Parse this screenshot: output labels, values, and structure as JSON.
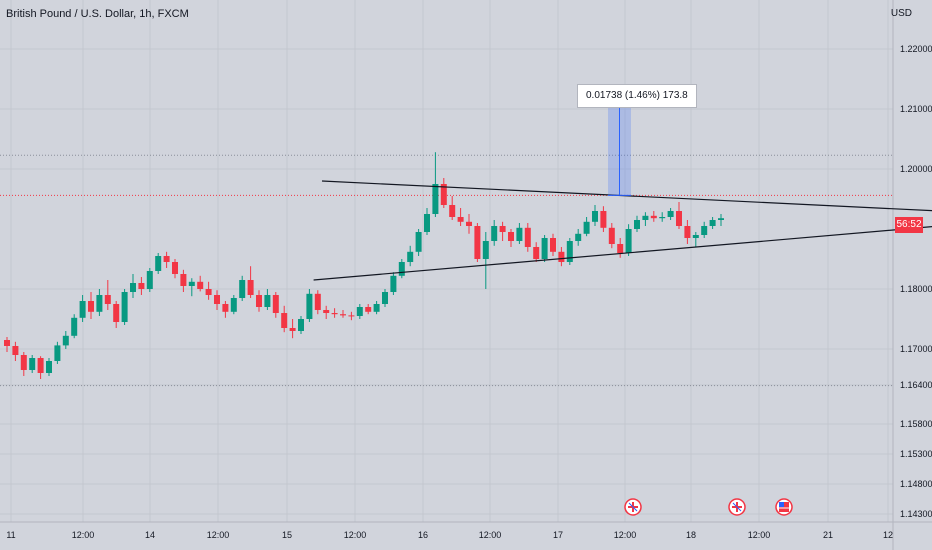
{
  "header": {
    "title": "British Pound / U.S. Dollar, 1h, FXCM",
    "currency": "USD"
  },
  "price_tag": {
    "label": "56:52",
    "color": "#f23645"
  },
  "measure": {
    "label": "0.01738 (1.46%) 173.8",
    "accent": "#2962ff"
  },
  "colors": {
    "up": "#089981",
    "down": "#f23645",
    "background": "#d1d4dc",
    "grid": "#c4c7cf",
    "trendline": "#131722"
  },
  "event_icons": [
    {
      "icon": "uk-flag-icon",
      "x": "12:00 (18)"
    },
    {
      "icon": "uk-flag-icon",
      "x": "19 (day)"
    },
    {
      "icon": "us-flag-icon",
      "x": "19 (day)"
    }
  ],
  "chart_data": {
    "type": "candlestick",
    "title": "British Pound / U.S. Dollar, 1h, FXCM",
    "ylabel": "USD",
    "ylim": [
      1.143,
      1.225
    ],
    "y_ticks": [
      1.22,
      1.21,
      1.2,
      1.18,
      1.17,
      1.164,
      1.158,
      1.153,
      1.148,
      1.143
    ],
    "y_tick_labels": [
      "1.22000",
      "1.21000",
      "1.20000",
      "1.18000",
      "1.17000",
      "1.16400",
      "1.15800",
      "1.15300",
      "1.14800",
      "1.14300"
    ],
    "x_tick_labels": [
      "11",
      "12:00",
      "14",
      "12:00",
      "15",
      "12:00",
      "16",
      "12:00",
      "17",
      "12:00",
      "18",
      "12:00",
      "21",
      "12"
    ],
    "horizontal_levels": [
      1.2023,
      1.1639
    ],
    "current_price": 1.1956,
    "grid": true,
    "candles": [
      [
        1.1715,
        1.172,
        1.1695,
        1.1705
      ],
      [
        1.1705,
        1.1712,
        1.168,
        1.169
      ],
      [
        1.169,
        1.1695,
        1.1655,
        1.1665
      ],
      [
        1.1665,
        1.169,
        1.166,
        1.1685
      ],
      [
        1.1685,
        1.1688,
        1.165,
        1.166
      ],
      [
        1.166,
        1.1685,
        1.1655,
        1.168
      ],
      [
        1.168,
        1.1712,
        1.1675,
        1.1706
      ],
      [
        1.1706,
        1.173,
        1.17,
        1.1722
      ],
      [
        1.1722,
        1.1758,
        1.1718,
        1.1752
      ],
      [
        1.1752,
        1.179,
        1.1745,
        1.178
      ],
      [
        1.178,
        1.1795,
        1.175,
        1.1762
      ],
      [
        1.1762,
        1.18,
        1.1755,
        1.179
      ],
      [
        1.179,
        1.1815,
        1.1765,
        1.1775
      ],
      [
        1.1775,
        1.178,
        1.1735,
        1.1745
      ],
      [
        1.1745,
        1.18,
        1.174,
        1.1795
      ],
      [
        1.1795,
        1.1825,
        1.1785,
        1.181
      ],
      [
        1.181,
        1.182,
        1.179,
        1.18
      ],
      [
        1.18,
        1.1835,
        1.1795,
        1.183
      ],
      [
        1.183,
        1.186,
        1.1825,
        1.1855
      ],
      [
        1.1855,
        1.1862,
        1.1835,
        1.1845
      ],
      [
        1.1845,
        1.185,
        1.1818,
        1.1825
      ],
      [
        1.1825,
        1.1832,
        1.1795,
        1.1805
      ],
      [
        1.1805,
        1.1818,
        1.1788,
        1.1812
      ],
      [
        1.1812,
        1.1822,
        1.1796,
        1.18
      ],
      [
        1.18,
        1.1812,
        1.1782,
        1.179
      ],
      [
        1.179,
        1.1798,
        1.1765,
        1.1775
      ],
      [
        1.1775,
        1.178,
        1.1752,
        1.1762
      ],
      [
        1.1762,
        1.179,
        1.1758,
        1.1785
      ],
      [
        1.1785,
        1.1822,
        1.178,
        1.1815
      ],
      [
        1.1815,
        1.1838,
        1.1785,
        1.179
      ],
      [
        1.179,
        1.1798,
        1.1762,
        1.177
      ],
      [
        1.177,
        1.18,
        1.1765,
        1.179
      ],
      [
        1.179,
        1.1795,
        1.1752,
        1.176
      ],
      [
        1.176,
        1.1772,
        1.1728,
        1.1735
      ],
      [
        1.1735,
        1.175,
        1.1718,
        1.173
      ],
      [
        1.173,
        1.1755,
        1.1725,
        1.175
      ],
      [
        1.175,
        1.18,
        1.1745,
        1.1792
      ],
      [
        1.1792,
        1.1798,
        1.1758,
        1.1765
      ],
      [
        1.1765,
        1.1772,
        1.175,
        1.176
      ],
      [
        1.176,
        1.1768,
        1.1752,
        1.1758
      ],
      [
        1.1758,
        1.1765,
        1.1752,
        1.1756
      ],
      [
        1.1756,
        1.1762,
        1.1748,
        1.1755
      ],
      [
        1.1755,
        1.1775,
        1.175,
        1.177
      ],
      [
        1.177,
        1.1775,
        1.1758,
        1.1762
      ],
      [
        1.1762,
        1.178,
        1.1758,
        1.1775
      ],
      [
        1.1775,
        1.18,
        1.177,
        1.1795
      ],
      [
        1.1795,
        1.1828,
        1.179,
        1.1822
      ],
      [
        1.1822,
        1.185,
        1.1818,
        1.1845
      ],
      [
        1.1845,
        1.1872,
        1.1838,
        1.1862
      ],
      [
        1.1862,
        1.19,
        1.1855,
        1.1895
      ],
      [
        1.1895,
        1.1935,
        1.189,
        1.1925
      ],
      [
        1.1925,
        1.2028,
        1.192,
        1.1975
      ],
      [
        1.1975,
        1.1985,
        1.1935,
        1.194
      ],
      [
        1.194,
        1.1955,
        1.1915,
        1.192
      ],
      [
        1.192,
        1.1935,
        1.1905,
        1.1912
      ],
      [
        1.1912,
        1.1925,
        1.1892,
        1.1905
      ],
      [
        1.1905,
        1.191,
        1.1845,
        1.185
      ],
      [
        1.185,
        1.1895,
        1.18,
        1.188
      ],
      [
        1.188,
        1.1915,
        1.1872,
        1.1905
      ],
      [
        1.1905,
        1.1912,
        1.188,
        1.1895
      ],
      [
        1.1895,
        1.19,
        1.187,
        1.188
      ],
      [
        1.188,
        1.191,
        1.1875,
        1.1902
      ],
      [
        1.1902,
        1.191,
        1.1862,
        1.187
      ],
      [
        1.187,
        1.1878,
        1.1845,
        1.185
      ],
      [
        1.185,
        1.189,
        1.1845,
        1.1885
      ],
      [
        1.1885,
        1.1892,
        1.1855,
        1.1862
      ],
      [
        1.1862,
        1.187,
        1.1838,
        1.1845
      ],
      [
        1.1845,
        1.1885,
        1.184,
        1.188
      ],
      [
        1.188,
        1.19,
        1.1872,
        1.1892
      ],
      [
        1.1892,
        1.192,
        1.1888,
        1.1912
      ],
      [
        1.1912,
        1.194,
        1.1905,
        1.193
      ],
      [
        1.193,
        1.1938,
        1.1895,
        1.1902
      ],
      [
        1.1902,
        1.191,
        1.1868,
        1.1875
      ],
      [
        1.1875,
        1.1885,
        1.1852,
        1.186
      ],
      [
        1.186,
        1.1908,
        1.1855,
        1.19
      ],
      [
        1.19,
        1.1922,
        1.1895,
        1.1915
      ],
      [
        1.1915,
        1.1928,
        1.1905,
        1.1922
      ],
      [
        1.1922,
        1.193,
        1.1912,
        1.1918
      ],
      [
        1.1918,
        1.1928,
        1.1912,
        1.192
      ],
      [
        1.192,
        1.1935,
        1.1915,
        1.193
      ],
      [
        1.193,
        1.1945,
        1.19,
        1.1905
      ],
      [
        1.1905,
        1.1915,
        1.1875,
        1.1885
      ],
      [
        1.1885,
        1.1895,
        1.187,
        1.189
      ],
      [
        1.189,
        1.1912,
        1.1885,
        1.1905
      ],
      [
        1.1905,
        1.192,
        1.19,
        1.1915
      ],
      [
        1.1915,
        1.1925,
        1.1905,
        1.1918
      ]
    ],
    "trendlines": [
      {
        "name": "upper",
        "from": [
          37.5,
          1.198
        ],
        "to": [
          111,
          1.193
        ]
      },
      {
        "name": "lower",
        "from": [
          36.5,
          1.1815
        ],
        "to": [
          111,
          1.1905
        ]
      }
    ],
    "measure_range": {
      "from": 1.1956,
      "to": 1.213,
      "label": "0.01738 (1.46%) 173.8"
    }
  }
}
